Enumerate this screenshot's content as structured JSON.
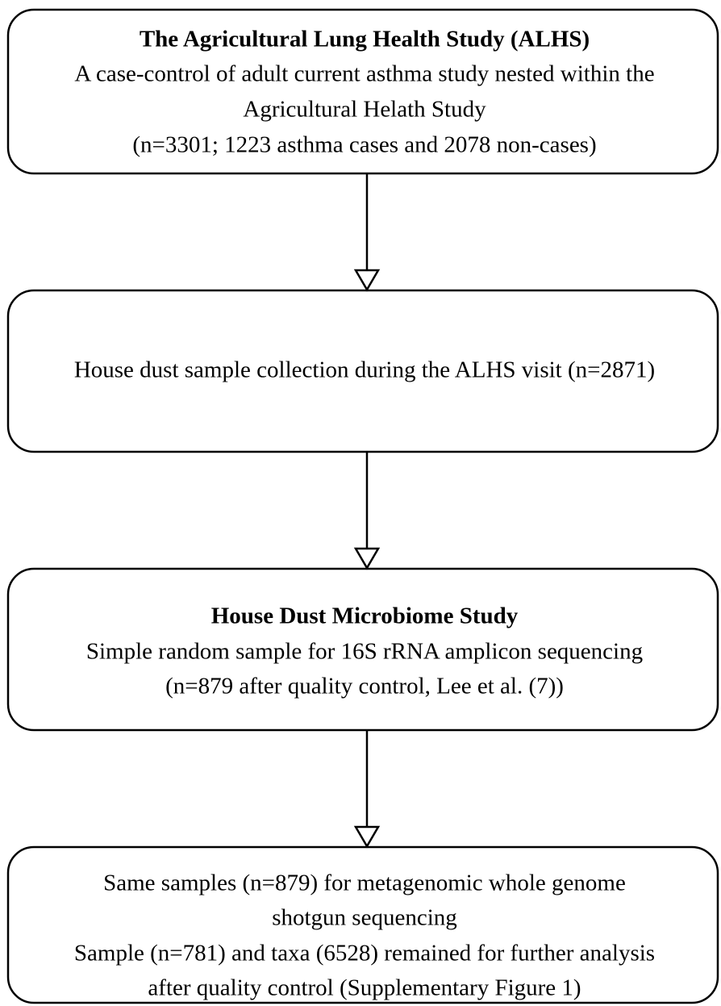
{
  "nodes": [
    {
      "title": "The Agricultural Lung Health Study (ALHS)",
      "lines": [
        "A case-control of adult current asthma study nested within the",
        "Agricultural Helath Study",
        "(n=3301; 1223 asthma cases and 2078 non-cases)"
      ]
    },
    {
      "lines": [
        "House dust sample collection during the ALHS visit (n=2871)"
      ]
    },
    {
      "title": "House Dust Microbiome Study",
      "lines": [
        "Simple random sample for 16S rRNA amplicon sequencing",
        "(n=879 after quality control, Lee et al. (7))"
      ]
    },
    {
      "lines": [
        "Same samples (n=879) for metagenomic whole genome",
        "shotgun sequencing",
        "Sample (n=781) and taxa (6528) remained for further analysis",
        "after quality control (Supplementary Figure 1)"
      ]
    }
  ]
}
